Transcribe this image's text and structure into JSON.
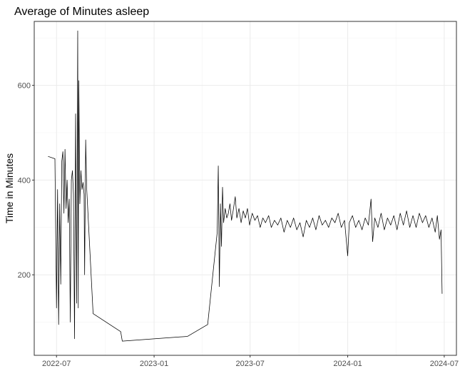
{
  "chart_data": {
    "type": "line",
    "title": "Average of Minutes asleep",
    "xlabel": "",
    "ylabel": "Time in Minutes",
    "x_ticks": [
      "2022-07",
      "2023-01",
      "2023-07",
      "2024-01",
      "2024-07"
    ],
    "y_ticks": [
      200,
      400,
      600
    ],
    "xlim": [
      "2022-05-20",
      "2024-07-24"
    ],
    "ylim": [
      30,
      735
    ],
    "grid": true,
    "legend": "none",
    "series": [
      {
        "points": [
          [
            "2022-06-15",
            450
          ],
          [
            "2022-06-28",
            445
          ],
          [
            "2022-07-01",
            130
          ],
          [
            "2022-07-03",
            380
          ],
          [
            "2022-07-05",
            95
          ],
          [
            "2022-07-07",
            350
          ],
          [
            "2022-07-09",
            180
          ],
          [
            "2022-07-11",
            440
          ],
          [
            "2022-07-13",
            460
          ],
          [
            "2022-07-15",
            330
          ],
          [
            "2022-07-17",
            465
          ],
          [
            "2022-07-19",
            340
          ],
          [
            "2022-07-21",
            400
          ],
          [
            "2022-07-23",
            310
          ],
          [
            "2022-07-25",
            360
          ],
          [
            "2022-07-27",
            100
          ],
          [
            "2022-07-29",
            400
          ],
          [
            "2022-07-31",
            420
          ],
          [
            "2022-08-02",
            370
          ],
          [
            "2022-08-04",
            65
          ],
          [
            "2022-08-06",
            540
          ],
          [
            "2022-08-08",
            140
          ],
          [
            "2022-08-10",
            715
          ],
          [
            "2022-08-11",
            130
          ],
          [
            "2022-08-12",
            610
          ],
          [
            "2022-08-14",
            350
          ],
          [
            "2022-08-16",
            420
          ],
          [
            "2022-08-18",
            380
          ],
          [
            "2022-08-20",
            395
          ],
          [
            "2022-08-22",
            370
          ],
          [
            "2022-08-23",
            200
          ],
          [
            "2022-08-25",
            485
          ],
          [
            "2022-08-27",
            380
          ],
          [
            "2022-09-08",
            118
          ],
          [
            "2022-10-30",
            80
          ],
          [
            "2022-11-02",
            60
          ],
          [
            "2023-03-05",
            70
          ],
          [
            "2023-04-12",
            95
          ],
          [
            "2023-04-30",
            290
          ],
          [
            "2023-05-02",
            430
          ],
          [
            "2023-05-04",
            175
          ],
          [
            "2023-05-06",
            350
          ],
          [
            "2023-05-08",
            260
          ],
          [
            "2023-05-10",
            385
          ],
          [
            "2023-05-12",
            310
          ],
          [
            "2023-05-15",
            340
          ],
          [
            "2023-05-18",
            320
          ],
          [
            "2023-05-21",
            330
          ],
          [
            "2023-05-24",
            350
          ],
          [
            "2023-05-27",
            315
          ],
          [
            "2023-05-30",
            335
          ],
          [
            "2023-06-03",
            365
          ],
          [
            "2023-06-06",
            320
          ],
          [
            "2023-06-10",
            340
          ],
          [
            "2023-06-14",
            310
          ],
          [
            "2023-06-18",
            335
          ],
          [
            "2023-06-22",
            320
          ],
          [
            "2023-06-26",
            340
          ],
          [
            "2023-06-30",
            305
          ],
          [
            "2023-07-05",
            330
          ],
          [
            "2023-07-10",
            315
          ],
          [
            "2023-07-15",
            325
          ],
          [
            "2023-07-20",
            300
          ],
          [
            "2023-07-25",
            320
          ],
          [
            "2023-07-30",
            310
          ],
          [
            "2023-08-05",
            325
          ],
          [
            "2023-08-10",
            300
          ],
          [
            "2023-08-16",
            315
          ],
          [
            "2023-08-22",
            305
          ],
          [
            "2023-08-28",
            320
          ],
          [
            "2023-09-03",
            290
          ],
          [
            "2023-09-09",
            315
          ],
          [
            "2023-09-15",
            300
          ],
          [
            "2023-09-21",
            320
          ],
          [
            "2023-09-27",
            295
          ],
          [
            "2023-10-03",
            310
          ],
          [
            "2023-10-09",
            280
          ],
          [
            "2023-10-15",
            315
          ],
          [
            "2023-10-21",
            300
          ],
          [
            "2023-10-27",
            320
          ],
          [
            "2023-11-02",
            295
          ],
          [
            "2023-11-08",
            325
          ],
          [
            "2023-11-14",
            305
          ],
          [
            "2023-11-20",
            315
          ],
          [
            "2023-11-26",
            300
          ],
          [
            "2023-12-02",
            320
          ],
          [
            "2023-12-08",
            310
          ],
          [
            "2023-12-14",
            330
          ],
          [
            "2023-12-20",
            300
          ],
          [
            "2023-12-26",
            315
          ],
          [
            "2024-01-01",
            240
          ],
          [
            "2024-01-04",
            310
          ],
          [
            "2024-01-10",
            325
          ],
          [
            "2024-01-16",
            300
          ],
          [
            "2024-01-22",
            315
          ],
          [
            "2024-01-28",
            295
          ],
          [
            "2024-02-03",
            320
          ],
          [
            "2024-02-09",
            305
          ],
          [
            "2024-02-14",
            360
          ],
          [
            "2024-02-17",
            270
          ],
          [
            "2024-02-21",
            320
          ],
          [
            "2024-02-27",
            300
          ],
          [
            "2024-03-04",
            330
          ],
          [
            "2024-03-10",
            295
          ],
          [
            "2024-03-16",
            320
          ],
          [
            "2024-03-22",
            305
          ],
          [
            "2024-03-28",
            325
          ],
          [
            "2024-04-03",
            295
          ],
          [
            "2024-04-09",
            330
          ],
          [
            "2024-04-15",
            305
          ],
          [
            "2024-04-21",
            335
          ],
          [
            "2024-04-27",
            300
          ],
          [
            "2024-05-03",
            325
          ],
          [
            "2024-05-09",
            300
          ],
          [
            "2024-05-15",
            330
          ],
          [
            "2024-05-21",
            310
          ],
          [
            "2024-05-27",
            325
          ],
          [
            "2024-06-02",
            300
          ],
          [
            "2024-06-08",
            320
          ],
          [
            "2024-06-14",
            290
          ],
          [
            "2024-06-18",
            325
          ],
          [
            "2024-06-22",
            275
          ],
          [
            "2024-06-25",
            295
          ],
          [
            "2024-06-27",
            160
          ]
        ]
      }
    ]
  }
}
